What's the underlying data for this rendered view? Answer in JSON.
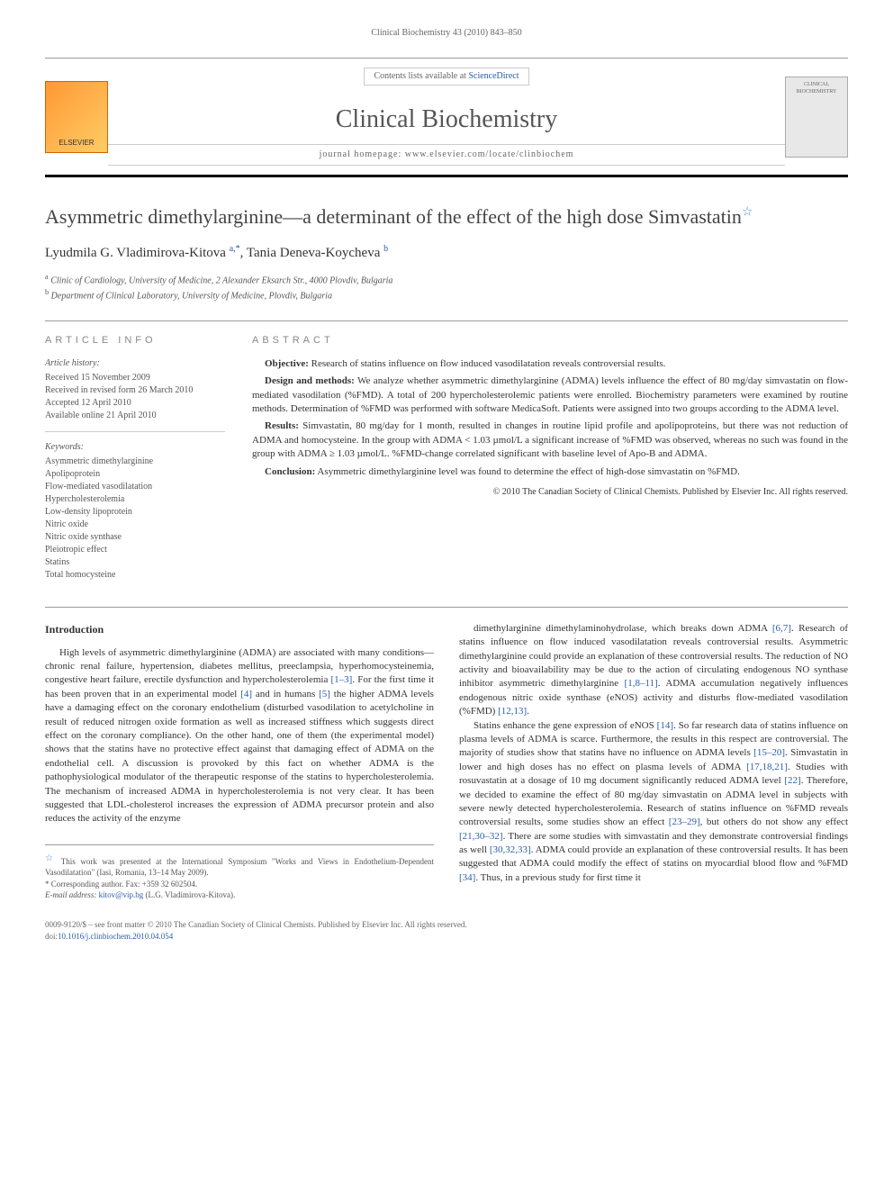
{
  "runningHead": "Clinical Biochemistry 43 (2010) 843–850",
  "masthead": {
    "publisher": "ELSEVIER",
    "contentsPrefix": "Contents lists available at ",
    "contentsLink": "ScienceDirect",
    "journalTitle": "Clinical Biochemistry",
    "homepagePrefix": "journal homepage: ",
    "homepageUrl": "www.elsevier.com/locate/clinbiochem",
    "coverText": "CLINICAL BIOCHEMISTRY"
  },
  "article": {
    "title": "Asymmetric dimethylarginine—a determinant of the effect of the high dose Simvastatin",
    "authors": [
      {
        "name": "Lyudmila G. Vladimirova-Kitova",
        "marks": "a,*"
      },
      {
        "name": "Tania Deneva-Koycheva",
        "marks": "b"
      }
    ],
    "authorSeparator": ", ",
    "affiliations": [
      {
        "mark": "a",
        "text": "Clinic of Cardiology, University of Medicine, 2 Alexander Eksarch Str., 4000 Plovdiv, Bulgaria"
      },
      {
        "mark": "b",
        "text": "Department of Clinical Laboratory, University of Medicine, Plovdiv, Bulgaria"
      }
    ]
  },
  "info": {
    "label": "ARTICLE INFO",
    "historyHeading": "Article history:",
    "history": [
      "Received 15 November 2009",
      "Received in revised form 26 March 2010",
      "Accepted 12 April 2010",
      "Available online 21 April 2010"
    ],
    "keywordsHeading": "Keywords:",
    "keywords": [
      "Asymmetric dimethylarginine",
      "Apolipoprotein",
      "Flow-mediated vasodilatation",
      "Hypercholesterolemia",
      "Low-density lipoprotein",
      "Nitric oxide",
      "Nitric oxide synthase",
      "Pleiotropic effect",
      "Statins",
      "Total homocysteine"
    ]
  },
  "abstract": {
    "label": "ABSTRACT",
    "paragraphs": [
      {
        "lead": "Objective:",
        "text": " Research of statins influence on flow induced vasodilatation reveals controversial results."
      },
      {
        "lead": "Design and methods:",
        "text": " We analyze whether asymmetric dimethylarginine (ADMA) levels influence the effect of 80 mg/day simvastatin on flow-mediated vasodilation (%FMD). A total of 200 hypercholesterolemic patients were enrolled. Biochemistry parameters were examined by routine methods. Determination of %FMD was performed with software MedicaSoft. Patients were assigned into two groups according to the ADMA level."
      },
      {
        "lead": "Results:",
        "text": " Simvastatin, 80 mg/day for 1 month, resulted in changes in routine lipid profile and apolipoproteins, but there was not reduction of ADMA and homocysteine. In the group with ADMA < 1.03 µmol/L a significant increase of %FMD was observed, whereas no such was found in the group with ADMA ≥ 1.03 µmol/L. %FMD-change correlated significant with baseline level of Apo-B and ADMA."
      },
      {
        "lead": "Conclusion:",
        "text": " Asymmetric dimethylarginine level was found to determine the effect of high-dose simvastatin on %FMD."
      }
    ],
    "copyright": "© 2010 The Canadian Society of Clinical Chemists. Published by Elsevier Inc. All rights reserved."
  },
  "intro": {
    "heading": "Introduction",
    "col1": "High levels of asymmetric dimethylarginine (ADMA) are associated with many conditions—chronic renal failure, hypertension, diabetes mellitus, preeclampsia, hyperhomocysteinemia, congestive heart failure, erectile dysfunction and hypercholesterolemia [1–3]. For the first time it has been proven that in an experimental model [4] and in humans [5] the higher ADMA levels have a damaging effect on the coronary endothelium (disturbed vasodilation to acetylcholine in result of reduced nitrogen oxide formation as well as increased stiffness which suggests direct effect on the coronary compliance). On the other hand, one of them (the experimental model) shows that the statins have no protective effect against that damaging effect of ADMA on the endothelial cell. A discussion is provoked by this fact on whether ADMA is the pathophysiological modulator of the therapeutic response of the statins to hypercholesterolemia. The mechanism of increased ADMA in hypercholesterolemia is not very clear. It has been suggested that LDL-cholesterol increases the expression of ADMA precursor protein and also reduces the activity of the enzyme",
    "col2a": "dimethylarginine dimethylaminohydrolase, which breaks down ADMA [6,7]. Research of statins influence on flow induced vasodilatation reveals controversial results. Asymmetric dimethylarginine could provide an explanation of these controversial results. The reduction of NO activity and bioavailability may be due to the action of circulating endogenous NO synthase inhibitor asymmetric dimethylarginine [1,8–11]. ADMA accumulation negatively influences endogenous nitric oxide synthase (eNOS) activity and disturbs flow-mediated vasodilation (%FMD) [12,13].",
    "col2b": "Statins enhance the gene expression of eNOS [14]. So far research data of statins influence on plasma levels of ADMA is scarce. Furthermore, the results in this respect are controversial. The majority of studies show that statins have no influence on ADMA levels [15–20]. Simvastatin in lower and high doses has no effect on plasma levels of ADMA [17,18,21]. Studies with rosuvastatin at a dosage of 10 mg document significantly reduced ADMA level [22]. Therefore, we decided to examine the effect of 80 mg/day simvastatin on ADMA level in subjects with severe newly detected hypercholesterolemia. Research of statins influence on %FMD reveals controversial results, some studies show an effect [23–29], but others do not show any effect [21,30–32]. There are some studies with simvastatin and they demonstrate controversial findings as well [30,32,33]. ADMA could provide an explanation of these controversial results. It has been suggested that ADMA could modify the effect of statins on myocardial blood flow and %FMD [34]. Thus, in a previous study for first time it"
  },
  "footnotes": {
    "presentation": "This work was presented at the International Symposium \"Works and Views in Endothelium-Dependent Vasodilatation\" (Iasi, Romania, 13–14 May 2009).",
    "corresponding": "Corresponding author. Fax: +359 32 602504.",
    "emailLabel": "E-mail address: ",
    "email": "kitov@vip.bg",
    "emailSuffix": " (L.G. Vladimirova-Kitova)."
  },
  "bottom": {
    "line1": "0009-9120/$ – see front matter © 2010 The Canadian Society of Clinical Chemists. Published by Elsevier Inc. All rights reserved.",
    "doiLabel": "doi:",
    "doi": "10.1016/j.clinbiochem.2010.04.054"
  },
  "colors": {
    "link": "#2a5da8",
    "text": "#333333",
    "muted": "#666666",
    "rule": "#999999"
  }
}
